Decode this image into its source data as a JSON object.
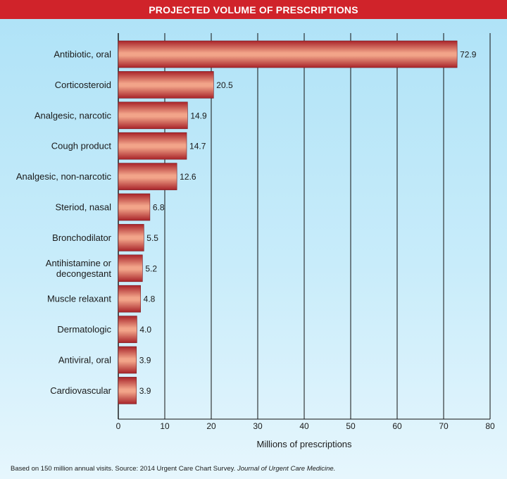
{
  "header": {
    "title": "PROJECTED VOLUME OF PRESCRIPTIONS"
  },
  "footnote": {
    "text": "Based on 150 million annual visits. Source: 2014 Urgent Care Chart Survey.",
    "journal": "Journal of Urgent Care Medicine."
  },
  "colors": {
    "title_bar": "#d0232a",
    "bar_dark": "#a8242a",
    "bar_light": "#f2a489",
    "grid": "#111111"
  },
  "chart_data": {
    "type": "bar",
    "orientation": "horizontal",
    "title": "PROJECTED VOLUME OF PRESCRIPTIONS",
    "xlabel": "Millions of prescriptions",
    "ylabel": "",
    "xlim": [
      0,
      80
    ],
    "xticks": [
      0,
      10,
      20,
      30,
      40,
      50,
      60,
      70,
      80
    ],
    "grid": true,
    "categories": [
      "Antibiotic, oral",
      "Corticosteroid",
      "Analgesic, narcotic",
      "Cough product",
      "Analgesic, non-narcotic",
      "Steriod, nasal",
      "Bronchodilator",
      "Antihistamine or decongestant",
      "Muscle relaxant",
      "Dermatologic",
      "Antiviral, oral",
      "Cardiovascular"
    ],
    "category_lines": [
      [
        "Antibiotic, oral"
      ],
      [
        "Corticosteroid"
      ],
      [
        "Analgesic, narcotic"
      ],
      [
        "Cough product"
      ],
      [
        "Analgesic, non-narcotic"
      ],
      [
        "Steriod, nasal"
      ],
      [
        "Bronchodilator"
      ],
      [
        "Antihistamine or",
        "decongestant"
      ],
      [
        "Muscle relaxant"
      ],
      [
        "Dermatologic"
      ],
      [
        "Antiviral, oral"
      ],
      [
        "Cardiovascular"
      ]
    ],
    "values": [
      72.9,
      20.5,
      14.9,
      14.7,
      12.6,
      6.8,
      5.5,
      5.2,
      4.8,
      4.0,
      3.9,
      3.9
    ],
    "value_labels": [
      "72.9",
      "20.5",
      "14.9",
      "14.7",
      "12.6",
      "6.8",
      "5.5",
      "5.2",
      "4.8",
      "4.0",
      "3.9",
      "3.9"
    ]
  }
}
